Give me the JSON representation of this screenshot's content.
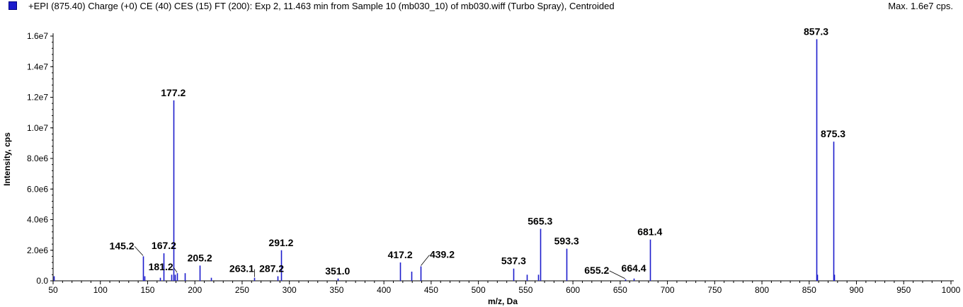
{
  "header": {
    "title": "+EPI (875.40) Charge (+0) CE (40) CES (15) FT (200): Exp 2, 11.463 min from Sample 10 (mb030_10) of mb030.wiff (Turbo Spray), Centroided",
    "max_label": "Max. 1.6e7 cps."
  },
  "colors": {
    "trace": "#1c1ccc",
    "axis": "#000000",
    "legend_swatch": "#1c1ccc"
  },
  "chart_data": {
    "type": "bar",
    "xlabel": "m/z, Da",
    "ylabel": "Intensity, cps",
    "xlim": [
      50,
      1000
    ],
    "ylim": [
      0,
      16000000
    ],
    "x_ticks": [
      50,
      100,
      150,
      200,
      250,
      300,
      350,
      400,
      450,
      500,
      550,
      600,
      650,
      700,
      750,
      800,
      850,
      900,
      950,
      1000
    ],
    "y_ticks": [
      {
        "value": 0,
        "label": "0.0"
      },
      {
        "value": 2000000,
        "label": "2.0e6"
      },
      {
        "value": 4000000,
        "label": "4.0e6"
      },
      {
        "value": 6000000,
        "label": "6.0e6"
      },
      {
        "value": 8000000,
        "label": "8.0e6"
      },
      {
        "value": 10000000,
        "label": "1.0e7"
      },
      {
        "value": 12000000,
        "label": "1.2e7"
      },
      {
        "value": 14000000,
        "label": "1.4e7"
      },
      {
        "value": 16000000,
        "label": "1.6e7"
      }
    ],
    "peaks": [
      {
        "mz": 50.5,
        "intensity": 300000
      },
      {
        "mz": 145.2,
        "intensity": 1600000,
        "label": "145.2"
      },
      {
        "mz": 147.0,
        "intensity": 300000
      },
      {
        "mz": 163.0,
        "intensity": 200000
      },
      {
        "mz": 167.2,
        "intensity": 1800000,
        "label": "167.2"
      },
      {
        "mz": 175.1,
        "intensity": 400000
      },
      {
        "mz": 177.2,
        "intensity": 11800000,
        "label": "177.2"
      },
      {
        "mz": 179.0,
        "intensity": 400000
      },
      {
        "mz": 181.2,
        "intensity": 500000,
        "label": "181.2"
      },
      {
        "mz": 189.1,
        "intensity": 500000
      },
      {
        "mz": 205.2,
        "intensity": 1000000,
        "label": "205.2"
      },
      {
        "mz": 217.0,
        "intensity": 200000
      },
      {
        "mz": 263.1,
        "intensity": 200000,
        "label": "263.1"
      },
      {
        "mz": 287.2,
        "intensity": 300000,
        "label": "287.2"
      },
      {
        "mz": 291.2,
        "intensity": 2000000,
        "label": "291.2"
      },
      {
        "mz": 351.0,
        "intensity": 150000,
        "label": "351.0"
      },
      {
        "mz": 417.2,
        "intensity": 1200000,
        "label": "417.2"
      },
      {
        "mz": 429.0,
        "intensity": 600000
      },
      {
        "mz": 439.2,
        "intensity": 950000,
        "label": "439.2"
      },
      {
        "mz": 537.3,
        "intensity": 800000,
        "label": "537.3"
      },
      {
        "mz": 551.0,
        "intensity": 400000
      },
      {
        "mz": 563.0,
        "intensity": 400000
      },
      {
        "mz": 565.3,
        "intensity": 3400000,
        "label": "565.3"
      },
      {
        "mz": 593.3,
        "intensity": 2100000,
        "label": "593.3"
      },
      {
        "mz": 655.2,
        "intensity": 100000,
        "label": "655.2"
      },
      {
        "mz": 664.4,
        "intensity": 150000,
        "label": "664.4"
      },
      {
        "mz": 681.4,
        "intensity": 2700000,
        "label": "681.4"
      },
      {
        "mz": 857.3,
        "intensity": 15800000,
        "label": "857.3"
      },
      {
        "mz": 858.3,
        "intensity": 400000
      },
      {
        "mz": 875.3,
        "intensity": 9100000,
        "label": "875.3"
      },
      {
        "mz": 876.3,
        "intensity": 400000
      }
    ]
  }
}
